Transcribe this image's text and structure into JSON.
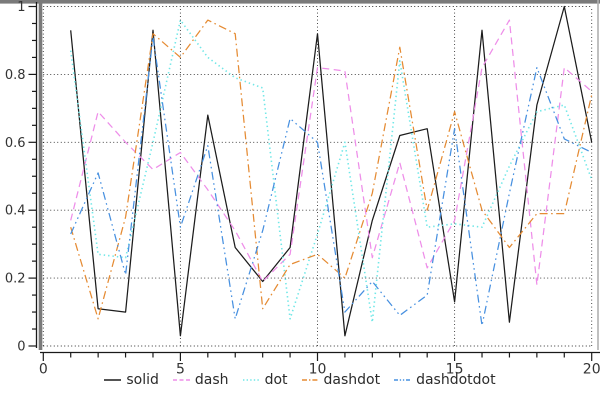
{
  "chart_data": {
    "type": "line",
    "title": "",
    "xlabel": "",
    "ylabel": "",
    "xlim": [
      0,
      20
    ],
    "ylim": [
      0,
      1
    ],
    "xticks": [
      0,
      5,
      10,
      15,
      20
    ],
    "xtick_labels": [
      "0",
      "5",
      "10",
      "15",
      "20"
    ],
    "yticks": [
      0,
      0.2,
      0.4,
      0.6,
      0.8,
      1
    ],
    "ytick_labels": [
      "0",
      "0.2",
      "0.4",
      "0.6",
      "0.8",
      "1"
    ],
    "minor_x_step": 1,
    "minor_y_step": 0.05,
    "grid": "dotted lines at major ticks, both axes",
    "legend_position": "bottom-center",
    "x": [
      1,
      2,
      3,
      4,
      5,
      6,
      7,
      8,
      9,
      10,
      11,
      12,
      13,
      14,
      15,
      16,
      17,
      18,
      19,
      20
    ],
    "series": [
      {
        "name": "solid",
        "linestyle": "solid",
        "color": "#1c1c1c",
        "values": [
          0.93,
          0.11,
          0.1,
          0.93,
          0.03,
          0.68,
          0.29,
          0.19,
          0.29,
          0.92,
          0.03,
          0.37,
          0.62,
          0.64,
          0.13,
          0.93,
          0.07,
          0.71,
          1.0,
          0.6
        ]
      },
      {
        "name": "dash",
        "linestyle": "dash",
        "color": "#ee8ee9",
        "values": [
          0.37,
          0.69,
          0.6,
          0.52,
          0.57,
          0.46,
          0.34,
          0.19,
          0.27,
          0.82,
          0.81,
          0.26,
          0.54,
          0.23,
          0.37,
          0.82,
          0.96,
          0.18,
          0.82,
          0.75
        ]
      },
      {
        "name": "dot",
        "linestyle": "dot",
        "color": "#6fe7e7",
        "values": [
          0.87,
          0.27,
          0.26,
          0.6,
          0.96,
          0.85,
          0.79,
          0.76,
          0.08,
          0.33,
          0.6,
          0.07,
          0.84,
          0.35,
          0.36,
          0.35,
          0.53,
          0.69,
          0.71,
          0.49
        ]
      },
      {
        "name": "dashdot",
        "linestyle": "dashdot",
        "color": "#e58b33",
        "values": [
          0.35,
          0.08,
          0.38,
          0.92,
          0.85,
          0.96,
          0.92,
          0.11,
          0.24,
          0.27,
          0.2,
          0.45,
          0.88,
          0.4,
          0.69,
          0.4,
          0.29,
          0.39,
          0.39,
          0.74
        ]
      },
      {
        "name": "dashdotdot",
        "linestyle": "dashdotdot",
        "color": "#4790e0",
        "values": [
          0.33,
          0.51,
          0.21,
          0.91,
          0.35,
          0.59,
          0.08,
          0.34,
          0.67,
          0.6,
          0.1,
          0.19,
          0.09,
          0.15,
          0.64,
          0.06,
          0.45,
          0.82,
          0.61,
          0.57
        ]
      }
    ]
  },
  "style_colors": {
    "spine_gray": "#7a7a7a",
    "axis_black": "#1a1a1a",
    "grid_color": "#1a1a1a",
    "tick_label_color": "#333333",
    "background": "#ffffff"
  }
}
